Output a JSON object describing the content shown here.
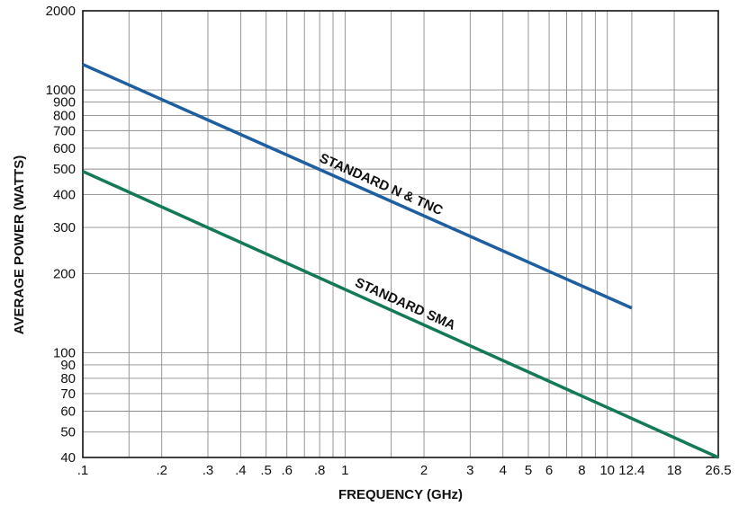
{
  "chart_data": {
    "type": "line",
    "title": "",
    "xlabel": "FREQUENCY (GHz)",
    "ylabel": "AVERAGE POWER (WATTS)",
    "x_scale": "log",
    "y_scale": "log",
    "xlim": [
      0.1,
      26.5
    ],
    "ylim": [
      40,
      2000
    ],
    "grid": true,
    "legend": "none",
    "x_ticks": [
      {
        "value": 0.1,
        "label": ".1"
      },
      {
        "value": 0.2,
        "label": ".2"
      },
      {
        "value": 0.3,
        "label": ".3"
      },
      {
        "value": 0.4,
        "label": ".4"
      },
      {
        "value": 0.5,
        "label": ".5"
      },
      {
        "value": 0.6,
        "label": ".6"
      },
      {
        "value": 0.8,
        "label": ".8"
      },
      {
        "value": 1,
        "label": "1"
      },
      {
        "value": 2,
        "label": "2"
      },
      {
        "value": 3,
        "label": "3"
      },
      {
        "value": 4,
        "label": "4"
      },
      {
        "value": 5,
        "label": "5"
      },
      {
        "value": 6,
        "label": "6"
      },
      {
        "value": 8,
        "label": "8"
      },
      {
        "value": 10,
        "label": "10"
      },
      {
        "value": 12.4,
        "label": "12.4"
      },
      {
        "value": 18,
        "label": "18"
      },
      {
        "value": 26.5,
        "label": "26.5"
      }
    ],
    "x_gridlines": [
      0.1,
      0.15,
      0.2,
      0.3,
      0.4,
      0.5,
      0.6,
      0.7,
      0.8,
      0.9,
      1,
      1.5,
      2,
      3,
      4,
      5,
      6,
      7,
      8,
      9,
      10,
      12.4,
      18,
      26.5
    ],
    "y_ticks": [
      {
        "value": 40,
        "label": "40"
      },
      {
        "value": 50,
        "label": "50"
      },
      {
        "value": 60,
        "label": "60"
      },
      {
        "value": 70,
        "label": "70"
      },
      {
        "value": 80,
        "label": "80"
      },
      {
        "value": 90,
        "label": "90"
      },
      {
        "value": 100,
        "label": "100"
      },
      {
        "value": 200,
        "label": "200"
      },
      {
        "value": 300,
        "label": "300"
      },
      {
        "value": 400,
        "label": "400"
      },
      {
        "value": 500,
        "label": "500"
      },
      {
        "value": 600,
        "label": "600"
      },
      {
        "value": 700,
        "label": "700"
      },
      {
        "value": 800,
        "label": "800"
      },
      {
        "value": 900,
        "label": "900"
      },
      {
        "value": 1000,
        "label": "1000"
      },
      {
        "value": 2000,
        "label": "2000"
      }
    ],
    "series": [
      {
        "name": "STANDARD N & TNC",
        "color": "#1f5fa0",
        "points": [
          [
            0.1,
            1250
          ],
          [
            12.4,
            148
          ]
        ]
      },
      {
        "name": "STANDARD SMA",
        "color": "#137a55",
        "points": [
          [
            0.1,
            490
          ],
          [
            26.5,
            40
          ]
        ]
      }
    ]
  }
}
